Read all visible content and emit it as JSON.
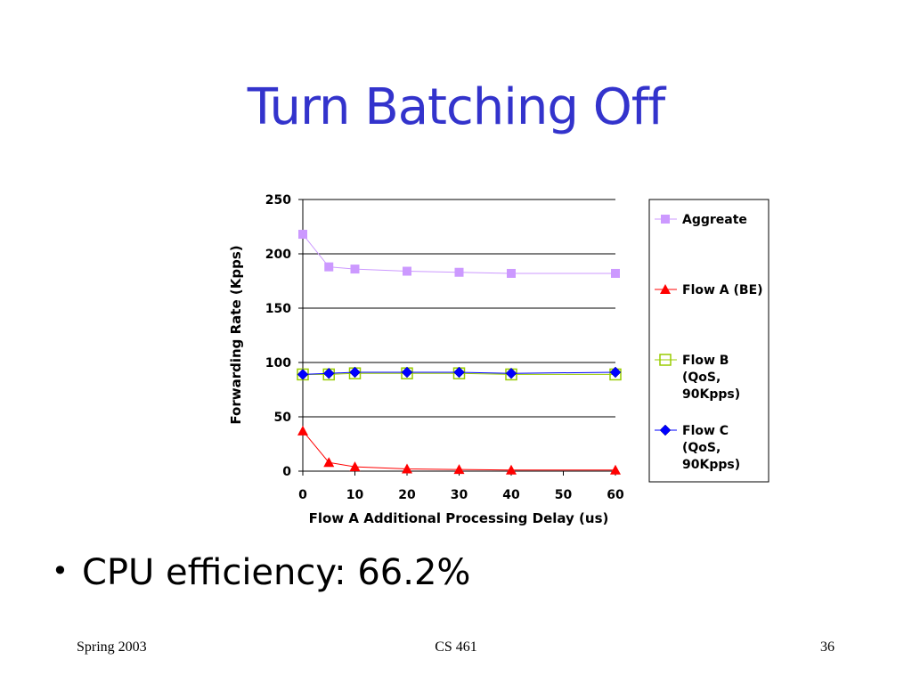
{
  "slide": {
    "title": "Turn Batching Off",
    "bullet": "CPU efficiency: 66.2%",
    "footer_left": "Spring 2003",
    "footer_center": "CS 461",
    "footer_right": "36"
  },
  "chart_data": {
    "type": "line",
    "title": "",
    "xlabel": "Flow A Additional Processing Delay (us)",
    "ylabel": "Forwarding Rate (Kpps)",
    "xlim": [
      0,
      60
    ],
    "ylim": [
      0,
      250
    ],
    "xticks": [
      0,
      10,
      20,
      30,
      40,
      50,
      60
    ],
    "yticks": [
      0,
      50,
      100,
      150,
      200,
      250
    ],
    "grid": "horizontal",
    "legend": "right",
    "x": [
      0,
      5,
      10,
      20,
      30,
      40,
      60
    ],
    "series": [
      {
        "name": "Aggreate",
        "values": [
          218,
          188,
          186,
          184,
          183,
          182,
          182
        ],
        "color": "#cc99ff",
        "marker": "square",
        "lines": [
          "Aggreate"
        ]
      },
      {
        "name": "Flow A (BE)",
        "values": [
          37,
          8,
          4,
          2,
          1.5,
          1,
          1
        ],
        "color": "#ff0000",
        "marker": "triangle",
        "lines": [
          "Flow A (BE)"
        ]
      },
      {
        "name": "Flow B (QoS, 90Kpps)",
        "values": [
          89,
          89,
          90,
          90,
          90,
          89,
          89
        ],
        "color": "#99cc00",
        "marker": "square-open",
        "lines": [
          "Flow B",
          "(QoS,",
          "90Kpps)"
        ]
      },
      {
        "name": "Flow C (QoS, 90Kpps)",
        "values": [
          89,
          90,
          91,
          91,
          91,
          90,
          91
        ],
        "color": "#0000ff",
        "marker": "diamond",
        "lines": [
          "Flow C",
          "(QoS,",
          "90Kpps)"
        ]
      }
    ]
  }
}
